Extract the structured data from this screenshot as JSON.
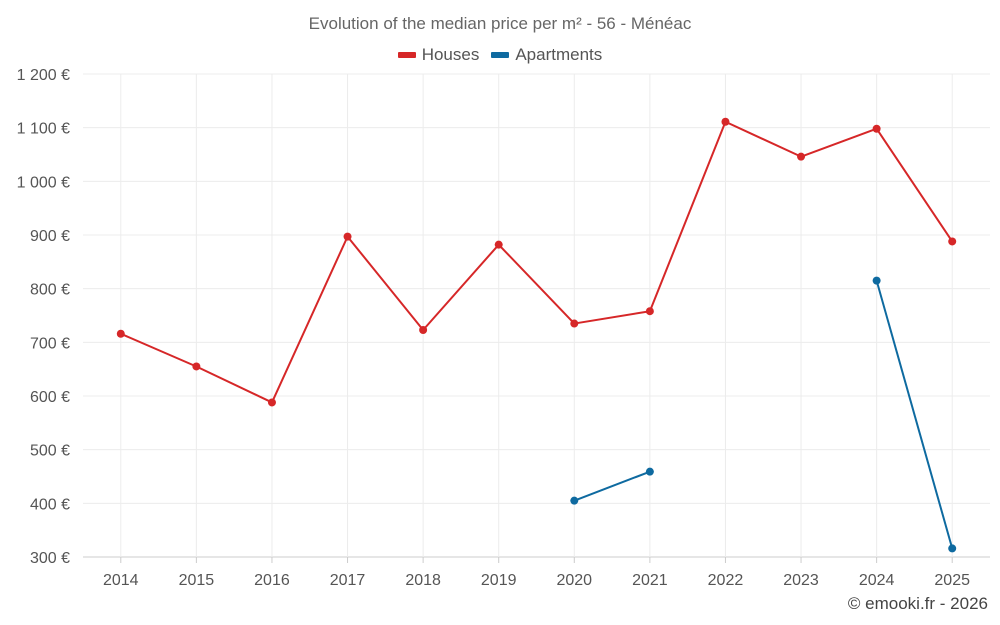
{
  "chart_data": {
    "type": "line",
    "title": "Evolution of the median price per m² - 56 - Ménéac",
    "categories": [
      "2014",
      "2015",
      "2016",
      "2017",
      "2018",
      "2019",
      "2020",
      "2021",
      "2022",
      "2023",
      "2024",
      "2025"
    ],
    "series": [
      {
        "name": "Houses",
        "color": "#d62728",
        "values": [
          716,
          655,
          588,
          897,
          723,
          882,
          735,
          758,
          1111,
          1046,
          1098,
          888
        ]
      },
      {
        "name": "Apartments",
        "color": "#0e6aa0",
        "values": [
          null,
          null,
          null,
          null,
          null,
          null,
          405,
          459,
          null,
          null,
          815,
          316
        ]
      }
    ],
    "ylim": [
      300,
      1200
    ],
    "yticks": [
      300,
      400,
      500,
      600,
      700,
      800,
      900,
      1000,
      1100,
      1200
    ],
    "ytick_labels": [
      "300 €",
      "400 €",
      "500 €",
      "600 €",
      "700 €",
      "800 €",
      "900 €",
      "1 000 €",
      "1 100 €",
      "1 200 €"
    ],
    "grid": true,
    "legend_position": "top-center"
  },
  "watermark": "© emooki.fr - 2026"
}
